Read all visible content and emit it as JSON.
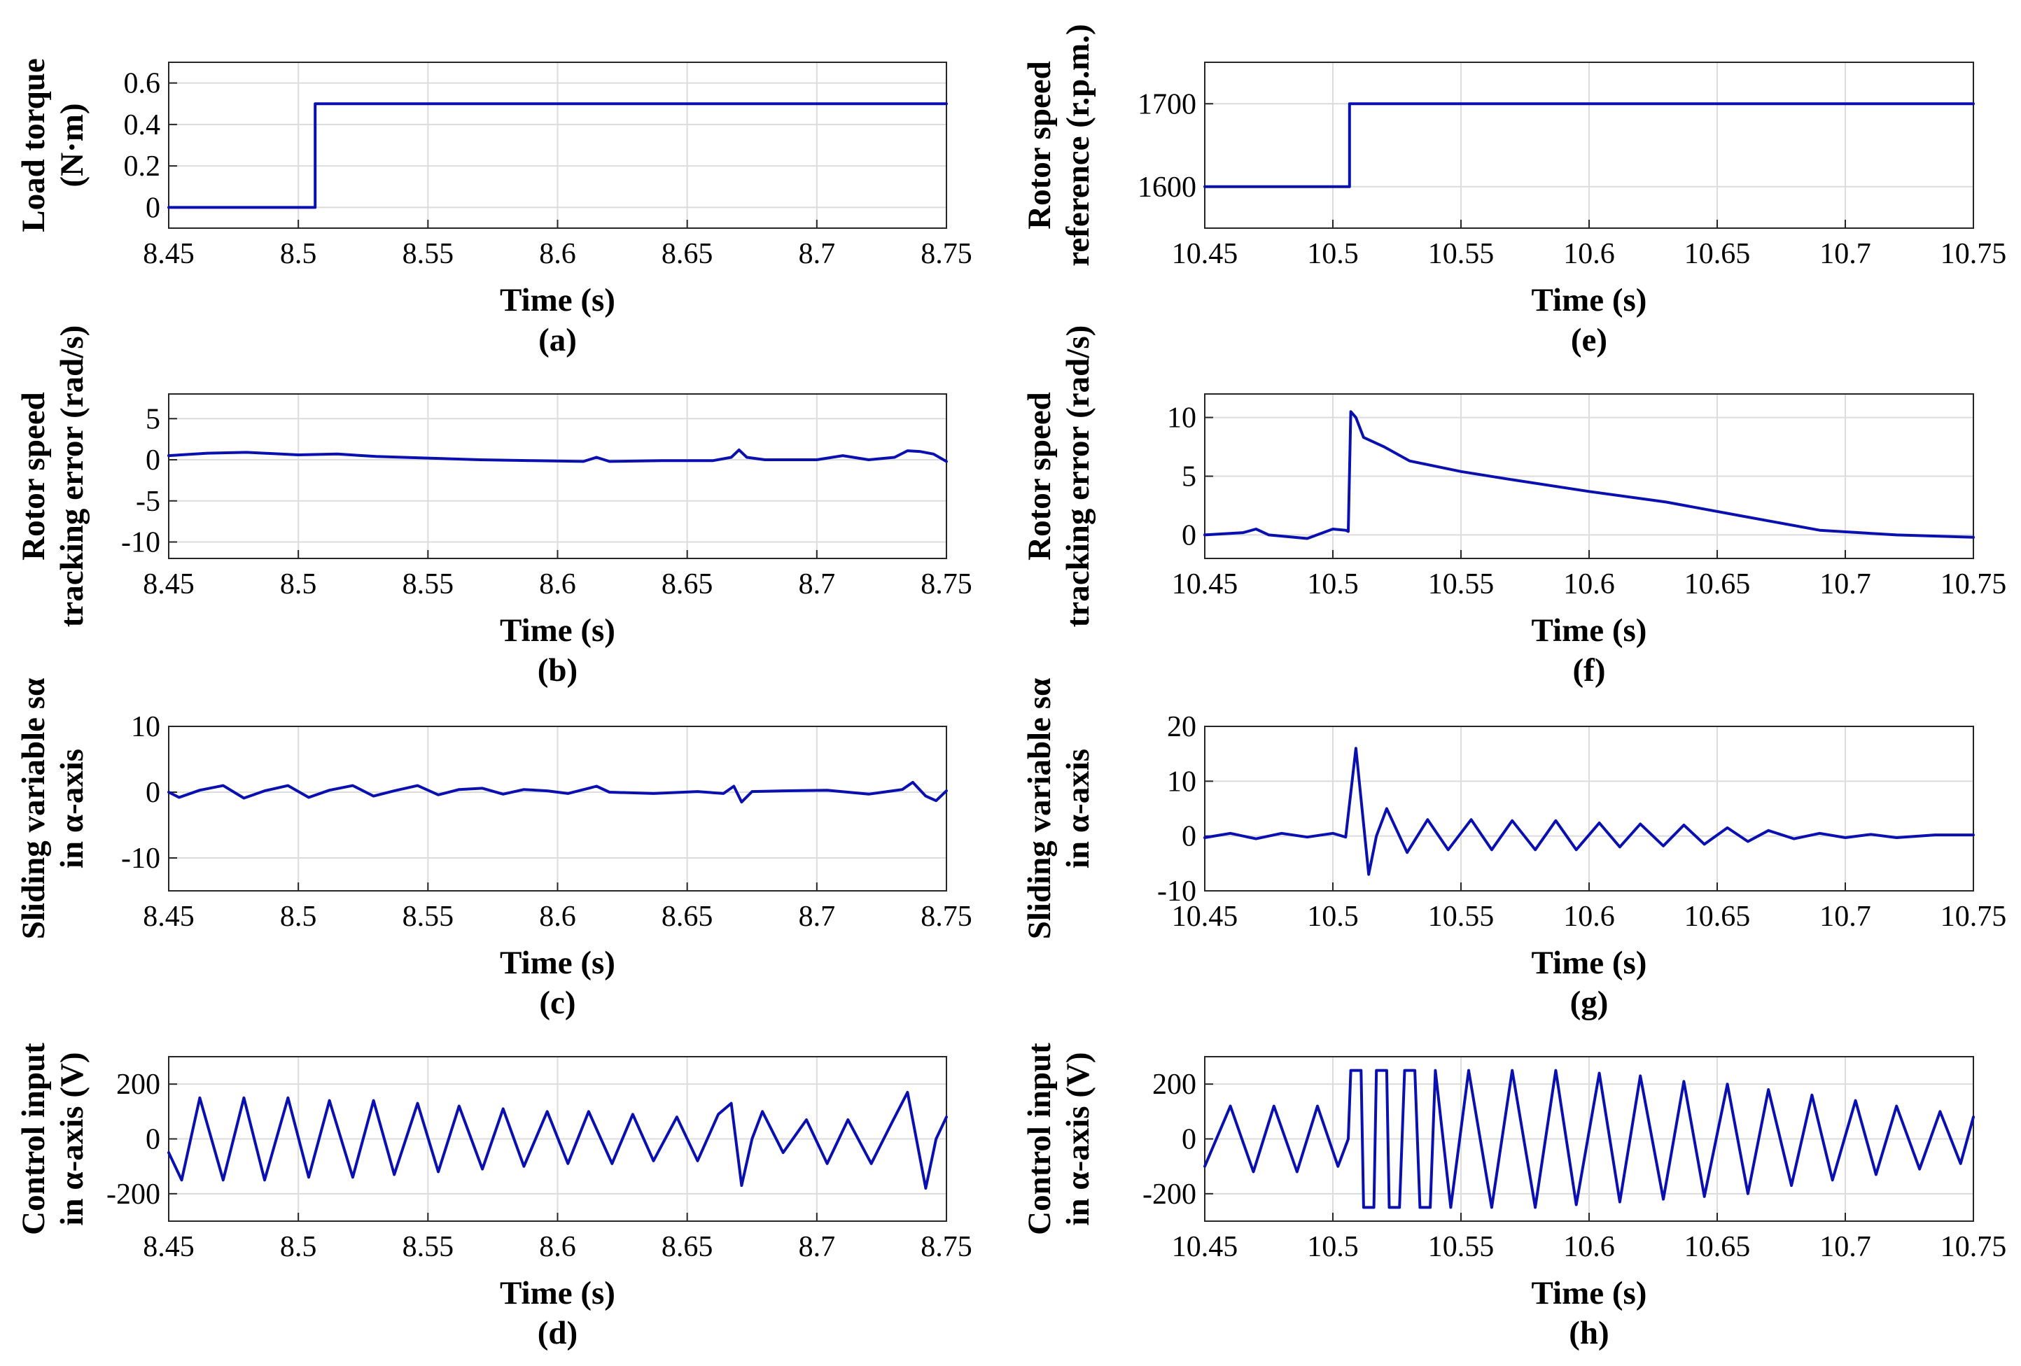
{
  "colors": {
    "line": "#0a10b0",
    "grid": "#dcdcdc",
    "axis": "#262626"
  },
  "chart_data": [
    {
      "id": "a",
      "type": "line",
      "caption": "(a)",
      "xlabel": "Time (s)",
      "ylabel": [
        "Load torque",
        "(N·m)"
      ],
      "xlim": [
        8.45,
        8.75
      ],
      "ylim": [
        -0.1,
        0.7
      ],
      "xticks": [
        8.45,
        8.5,
        8.55,
        8.6,
        8.65,
        8.7,
        8.75
      ],
      "xtick_labels": [
        "8.45",
        "8.5",
        "8.55",
        "8.6",
        "8.65",
        "8.7",
        "8.75"
      ],
      "yticks": [
        0,
        0.2,
        0.4,
        0.6
      ],
      "ytick_labels": [
        "0",
        "0.2",
        "0.4",
        "0.6"
      ],
      "series": [
        {
          "name": "Load torque",
          "x": [
            8.45,
            8.5065,
            8.5065,
            8.75
          ],
          "y": [
            0,
            0,
            0.5,
            0.5
          ]
        }
      ]
    },
    {
      "id": "b",
      "type": "line",
      "caption": "(b)",
      "xlabel": "Time (s)",
      "ylabel": [
        "Rotor speed",
        "tracking error (rad/s)"
      ],
      "xlim": [
        8.45,
        8.75
      ],
      "ylim": [
        -12,
        8
      ],
      "xticks": [
        8.45,
        8.5,
        8.55,
        8.6,
        8.65,
        8.7,
        8.75
      ],
      "xtick_labels": [
        "8.45",
        "8.5",
        "8.55",
        "8.6",
        "8.65",
        "8.7",
        "8.75"
      ],
      "yticks": [
        -10,
        -5,
        0,
        5
      ],
      "ytick_labels": [
        "-10",
        "-5",
        "0",
        "5"
      ],
      "series": [
        {
          "name": "Tracking error",
          "x": [
            8.45,
            8.465,
            8.48,
            8.5,
            8.515,
            8.53,
            8.55,
            8.57,
            8.59,
            8.61,
            8.615,
            8.62,
            8.64,
            8.66,
            8.667,
            8.67,
            8.673,
            8.68,
            8.7,
            8.71,
            8.72,
            8.73,
            8.735,
            8.74,
            8.745,
            8.75
          ],
          "y": [
            0.5,
            0.8,
            0.9,
            0.6,
            0.7,
            0.4,
            0.2,
            0,
            -0.1,
            -0.2,
            0.3,
            -0.2,
            -0.1,
            -0.1,
            0.3,
            1.2,
            0.3,
            0,
            0,
            0.5,
            0,
            0.3,
            1.1,
            1,
            0.7,
            -0.2
          ]
        }
      ]
    },
    {
      "id": "c",
      "type": "line",
      "caption": "(c)",
      "xlabel": "Time (s)",
      "ylabel": [
        "Sliding variable sα",
        "in α-axis"
      ],
      "xlim": [
        8.45,
        8.75
      ],
      "ylim": [
        -15,
        10
      ],
      "xticks": [
        8.45,
        8.5,
        8.55,
        8.6,
        8.65,
        8.7,
        8.75
      ],
      "xtick_labels": [
        "8.45",
        "8.5",
        "8.55",
        "8.6",
        "8.65",
        "8.7",
        "8.75"
      ],
      "yticks": [
        -10,
        0,
        10
      ],
      "ytick_labels": [
        "-10",
        "0",
        "10"
      ],
      "series": [
        {
          "name": "Sliding variable",
          "x": [
            8.45,
            8.454,
            8.462,
            8.471,
            8.479,
            8.487,
            8.496,
            8.504,
            8.512,
            8.521,
            8.529,
            8.537,
            8.546,
            8.554,
            8.562,
            8.571,
            8.579,
            8.587,
            8.596,
            8.604,
            8.612,
            8.615,
            8.62,
            8.637,
            8.654,
            8.664,
            8.668,
            8.671,
            8.675,
            8.687,
            8.704,
            8.72,
            8.733,
            8.737,
            8.742,
            8.746,
            8.75
          ],
          "y": [
            0,
            -0.8,
            0.3,
            1,
            -0.9,
            0.2,
            1,
            -0.8,
            0.3,
            1,
            -0.6,
            0.2,
            1,
            -0.4,
            0.4,
            0.6,
            -0.3,
            0.4,
            0.2,
            -0.2,
            0.6,
            0.9,
            0,
            -0.2,
            0.1,
            -0.2,
            0.9,
            -1.5,
            0.1,
            0.2,
            0.3,
            -0.3,
            0.4,
            1.5,
            -0.6,
            -1.3,
            0.2
          ]
        }
      ]
    },
    {
      "id": "d",
      "type": "line",
      "caption": "(d)",
      "xlabel": "Time (s)",
      "ylabel": [
        "Control input",
        "in α-axis (V)"
      ],
      "xlim": [
        8.45,
        8.75
      ],
      "ylim": [
        -300,
        300
      ],
      "xticks": [
        8.45,
        8.5,
        8.55,
        8.6,
        8.65,
        8.7,
        8.75
      ],
      "xtick_labels": [
        "8.45",
        "8.5",
        "8.55",
        "8.6",
        "8.65",
        "8.7",
        "8.75"
      ],
      "yticks": [
        -200,
        0,
        200
      ],
      "ytick_labels": [
        "-200",
        "0",
        "200"
      ],
      "series": [
        {
          "name": "Control input",
          "x": [
            8.45,
            8.455,
            8.462,
            8.471,
            8.479,
            8.487,
            8.496,
            8.504,
            8.512,
            8.521,
            8.529,
            8.537,
            8.546,
            8.554,
            8.562,
            8.571,
            8.579,
            8.587,
            8.596,
            8.604,
            8.612,
            8.621,
            8.629,
            8.637,
            8.646,
            8.654,
            8.662,
            8.667,
            8.671,
            8.675,
            8.679,
            8.687,
            8.696,
            8.704,
            8.712,
            8.721,
            8.729,
            8.735,
            8.742,
            8.746,
            8.75
          ],
          "y": [
            -50,
            -150,
            150,
            -150,
            150,
            -150,
            150,
            -140,
            140,
            -140,
            140,
            -130,
            130,
            -120,
            120,
            -110,
            110,
            -100,
            100,
            -90,
            100,
            -90,
            90,
            -80,
            80,
            -80,
            90,
            130,
            -170,
            0,
            100,
            -50,
            70,
            -90,
            70,
            -90,
            60,
            170,
            -180,
            0,
            80
          ]
        }
      ]
    },
    {
      "id": "e",
      "type": "line",
      "caption": "(e)",
      "xlabel": "Time (s)",
      "ylabel": [
        "Rotor speed",
        "reference (r.p.m.)"
      ],
      "xlim": [
        10.45,
        10.75
      ],
      "ylim": [
        1550,
        1750
      ],
      "xticks": [
        10.45,
        10.5,
        10.55,
        10.6,
        10.65,
        10.7,
        10.75
      ],
      "xtick_labels": [
        "10.45",
        "10.5",
        "10.55",
        "10.6",
        "10.65",
        "10.7",
        "10.75"
      ],
      "yticks": [
        1600,
        1700
      ],
      "ytick_labels": [
        "1600",
        "1700"
      ],
      "series": [
        {
          "name": "Speed reference",
          "x": [
            10.45,
            10.5065,
            10.5065,
            10.75
          ],
          "y": [
            1600,
            1600,
            1700,
            1700
          ]
        }
      ]
    },
    {
      "id": "f",
      "type": "line",
      "caption": "(f)",
      "xlabel": "Time (s)",
      "ylabel": [
        "Rotor speed",
        "tracking error (rad/s)"
      ],
      "xlim": [
        10.45,
        10.75
      ],
      "ylim": [
        -2,
        12
      ],
      "xticks": [
        10.45,
        10.5,
        10.55,
        10.6,
        10.65,
        10.7,
        10.75
      ],
      "xtick_labels": [
        "10.45",
        "10.5",
        "10.55",
        "10.6",
        "10.65",
        "10.7",
        "10.75"
      ],
      "yticks": [
        0,
        5,
        10
      ],
      "ytick_labels": [
        "0",
        "5",
        "10"
      ],
      "series": [
        {
          "name": "Tracking error",
          "x": [
            10.45,
            10.465,
            10.47,
            10.475,
            10.49,
            10.5,
            10.505,
            10.506,
            10.507,
            10.509,
            10.512,
            10.52,
            10.53,
            10.55,
            10.57,
            10.6,
            10.63,
            10.66,
            10.69,
            10.72,
            10.75
          ],
          "y": [
            0,
            0.2,
            0.5,
            0,
            -0.3,
            0.5,
            0.4,
            0.3,
            10.5,
            10,
            8.3,
            7.5,
            6.3,
            5.4,
            4.7,
            3.7,
            2.8,
            1.6,
            0.4,
            0,
            -0.2
          ]
        }
      ]
    },
    {
      "id": "g",
      "type": "line",
      "caption": "(g)",
      "xlabel": "Time (s)",
      "ylabel": [
        "Sliding variable sα",
        "in α-axis"
      ],
      "xlim": [
        10.45,
        10.75
      ],
      "ylim": [
        -10,
        20
      ],
      "xticks": [
        10.45,
        10.5,
        10.55,
        10.6,
        10.65,
        10.7,
        10.75
      ],
      "xtick_labels": [
        "10.45",
        "10.5",
        "10.55",
        "10.6",
        "10.65",
        "10.7",
        "10.75"
      ],
      "yticks": [
        -10,
        0,
        10,
        20
      ],
      "ytick_labels": [
        "-10",
        "0",
        "10",
        "20"
      ],
      "series": [
        {
          "name": "Sliding variable",
          "x": [
            10.45,
            10.46,
            10.47,
            10.48,
            10.49,
            10.5,
            10.505,
            10.509,
            10.514,
            10.517,
            10.521,
            10.529,
            10.537,
            10.545,
            10.554,
            10.562,
            10.57,
            10.579,
            10.587,
            10.595,
            10.604,
            10.612,
            10.62,
            10.629,
            10.637,
            10.645,
            10.654,
            10.662,
            10.67,
            10.68,
            10.69,
            10.7,
            10.71,
            10.72,
            10.735,
            10.75
          ],
          "y": [
            -0.3,
            0.5,
            -0.5,
            0.5,
            -0.2,
            0.5,
            -0.2,
            16,
            -7,
            0,
            5,
            -3,
            3,
            -2.5,
            3,
            -2.5,
            2.8,
            -2.5,
            2.8,
            -2.5,
            2.4,
            -2,
            2.2,
            -1.8,
            2,
            -1.5,
            1.5,
            -1,
            1,
            -0.5,
            0.5,
            -0.3,
            0.3,
            -0.3,
            0.2,
            0.2
          ]
        }
      ]
    },
    {
      "id": "h",
      "type": "line",
      "caption": "(h)",
      "xlabel": "Time (s)",
      "ylabel": [
        "Control input",
        "in α-axis (V)"
      ],
      "xlim": [
        10.45,
        10.75
      ],
      "ylim": [
        -300,
        300
      ],
      "xticks": [
        10.45,
        10.5,
        10.55,
        10.6,
        10.65,
        10.7,
        10.75
      ],
      "xtick_labels": [
        "10.45",
        "10.5",
        "10.55",
        "10.6",
        "10.65",
        "10.7",
        "10.75"
      ],
      "yticks": [
        -200,
        0,
        200
      ],
      "ytick_labels": [
        "-200",
        "0",
        "200"
      ],
      "series": [
        {
          "name": "Control input",
          "x": [
            10.45,
            10.46,
            10.469,
            10.477,
            10.486,
            10.494,
            10.502,
            10.506,
            10.507,
            10.511,
            10.512,
            10.516,
            10.517,
            10.521,
            10.522,
            10.526,
            10.528,
            10.532,
            10.534,
            10.538,
            10.54,
            10.546,
            10.553,
            10.562,
            10.57,
            10.579,
            10.587,
            10.595,
            10.604,
            10.612,
            10.62,
            10.629,
            10.637,
            10.645,
            10.654,
            10.662,
            10.67,
            10.679,
            10.687,
            10.695,
            10.704,
            10.712,
            10.72,
            10.729,
            10.737,
            10.745,
            10.75
          ],
          "y": [
            -100,
            120,
            -120,
            120,
            -120,
            120,
            -100,
            0,
            250,
            250,
            -250,
            -250,
            250,
            250,
            -250,
            -250,
            250,
            250,
            -250,
            -250,
            250,
            -250,
            250,
            -250,
            250,
            -250,
            250,
            -240,
            240,
            -230,
            230,
            -220,
            210,
            -210,
            200,
            -200,
            180,
            -170,
            160,
            -150,
            140,
            -130,
            120,
            -110,
            100,
            -90,
            80
          ]
        }
      ]
    }
  ]
}
